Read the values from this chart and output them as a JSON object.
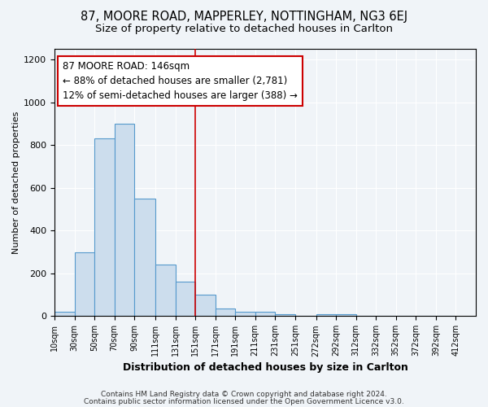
{
  "title1": "87, MOORE ROAD, MAPPERLEY, NOTTINGHAM, NG3 6EJ",
  "title2": "Size of property relative to detached houses in Carlton",
  "xlabel": "Distribution of detached houses by size in Carlton",
  "ylabel": "Number of detached properties",
  "bar_left_edges": [
    10,
    30,
    50,
    70,
    90,
    111,
    131,
    151,
    171,
    191,
    211,
    231,
    251,
    272,
    292,
    312,
    332,
    352,
    372,
    392
  ],
  "bar_widths": [
    20,
    20,
    20,
    20,
    21,
    20,
    20,
    20,
    20,
    20,
    20,
    20,
    21,
    20,
    20,
    20,
    20,
    20,
    20,
    20
  ],
  "bar_heights": [
    20,
    300,
    830,
    900,
    550,
    240,
    160,
    100,
    35,
    20,
    20,
    10,
    0,
    10,
    10,
    0,
    0,
    0,
    0,
    0
  ],
  "bar_facecolor": "#ccdded",
  "bar_edgecolor": "#5599cc",
  "bar_linewidth": 0.8,
  "vline_x": 151,
  "vline_color": "#cc0000",
  "vline_linewidth": 1.2,
  "annotation_text": "87 MOORE ROAD: 146sqm\n← 88% of detached houses are smaller (2,781)\n12% of semi-detached houses are larger (388) →",
  "annotation_fontsize": 8.5,
  "annotation_box_edgecolor": "#cc0000",
  "annotation_box_facecolor": "white",
  "xtick_labels": [
    "10sqm",
    "30sqm",
    "50sqm",
    "70sqm",
    "90sqm",
    "111sqm",
    "131sqm",
    "151sqm",
    "171sqm",
    "191sqm",
    "211sqm",
    "231sqm",
    "251sqm",
    "272sqm",
    "292sqm",
    "312sqm",
    "332sqm",
    "352sqm",
    "372sqm",
    "392sqm",
    "412sqm"
  ],
  "xtick_positions": [
    10,
    30,
    50,
    70,
    90,
    111,
    131,
    151,
    171,
    191,
    211,
    231,
    251,
    272,
    292,
    312,
    332,
    352,
    372,
    392,
    412
  ],
  "ylim": [
    0,
    1250
  ],
  "xlim": [
    10,
    432
  ],
  "background_color": "#f0f4f8",
  "plot_bg_color": "#f0f4f8",
  "grid_color": "white",
  "title1_fontsize": 10.5,
  "title2_fontsize": 9.5,
  "footnote1": "Contains HM Land Registry data © Crown copyright and database right 2024.",
  "footnote2": "Contains public sector information licensed under the Open Government Licence v3.0.",
  "footnote_fontsize": 6.5
}
